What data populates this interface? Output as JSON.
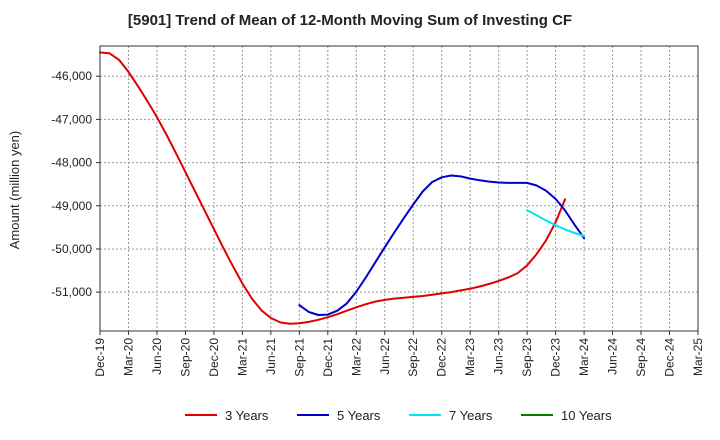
{
  "chart_data": {
    "type": "line",
    "title": "[5901]  Trend of Mean of 12-Month Moving Sum of Investing CF",
    "xlabel": "",
    "ylabel": "Amount (million yen)",
    "ylim": [
      -51900,
      -45300
    ],
    "yticks": [
      -46000,
      -47000,
      -48000,
      -49000,
      -50000,
      -51000
    ],
    "ytick_labels": [
      "-46,000",
      "-47,000",
      "-48,000",
      "-49,000",
      "-50,000",
      "-51,000"
    ],
    "x_start": "Dec-19",
    "x_months_total": 63,
    "xtick_labels": [
      "Dec-19",
      "Mar-20",
      "Jun-20",
      "Sep-20",
      "Dec-20",
      "Mar-21",
      "Jun-21",
      "Sep-21",
      "Dec-21",
      "Mar-22",
      "Jun-22",
      "Sep-22",
      "Dec-22",
      "Mar-23",
      "Jun-23",
      "Sep-23",
      "Dec-23",
      "Mar-24",
      "Jun-24",
      "Sep-24",
      "Dec-24",
      "Mar-25"
    ],
    "grid": true,
    "legend_position": "bottom",
    "series": [
      {
        "name": "3 Years",
        "color": "#e00000",
        "start_month_index": 0,
        "values": [
          -45450,
          -45470,
          -45620,
          -45900,
          -46230,
          -46580,
          -46950,
          -47350,
          -47780,
          -48220,
          -48660,
          -49100,
          -49540,
          -49980,
          -50400,
          -50800,
          -51150,
          -51420,
          -51600,
          -51700,
          -51730,
          -51720,
          -51690,
          -51640,
          -51580,
          -51510,
          -51430,
          -51350,
          -51280,
          -51220,
          -51180,
          -51150,
          -51130,
          -51110,
          -51090,
          -51060,
          -51030,
          -51000,
          -50960,
          -50920,
          -50870,
          -50810,
          -50740,
          -50660,
          -50560,
          -50380,
          -50120,
          -49800,
          -49380,
          -48850
        ]
      },
      {
        "name": "5 Years",
        "color": "#0000cc",
        "start_month_index": 21,
        "values": [
          -51300,
          -51460,
          -51530,
          -51520,
          -51430,
          -51260,
          -50990,
          -50660,
          -50310,
          -49960,
          -49620,
          -49290,
          -48970,
          -48670,
          -48450,
          -48340,
          -48300,
          -48320,
          -48370,
          -48410,
          -48440,
          -48460,
          -48470,
          -48470,
          -48470,
          -48530,
          -48650,
          -48840,
          -49110,
          -49440,
          -49750
        ]
      },
      {
        "name": "7 Years",
        "color": "#00e5ee",
        "start_month_index": 45,
        "values": [
          -49100,
          -49220,
          -49340,
          -49450,
          -49550,
          -49630,
          -49700
        ]
      },
      {
        "name": "10 Years",
        "color": "#008000",
        "start_month_index": 0,
        "values": []
      }
    ]
  }
}
